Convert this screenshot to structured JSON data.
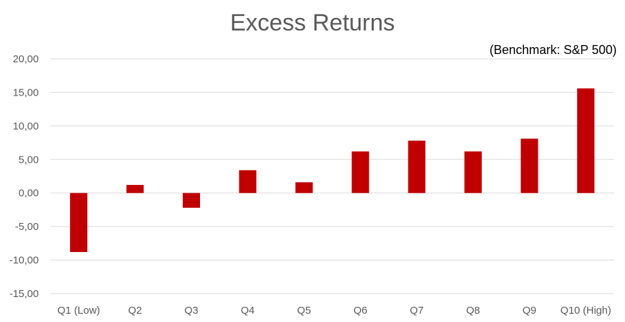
{
  "chart_data": {
    "type": "bar",
    "title": "Excess Returns",
    "subtitle": "(Benchmark: S&P 500)",
    "categories": [
      "Q1 (Low)",
      "Q2",
      "Q3",
      "Q4",
      "Q5",
      "Q6",
      "Q7",
      "Q8",
      "Q9",
      "Q10 (High)"
    ],
    "values": [
      -8.8,
      1.2,
      -2.2,
      3.4,
      1.6,
      6.2,
      7.8,
      6.2,
      8.1,
      15.6
    ],
    "ylim": [
      -15,
      20
    ],
    "yticks": [
      20,
      15,
      10,
      5,
      0,
      -5,
      -10,
      -15
    ],
    "ytick_labels": [
      "20,00",
      "15,00",
      "10,00",
      "5,00",
      "0,00",
      "-5,00",
      "-10,00",
      "-15,00"
    ],
    "grid": true,
    "bar_color": "#C00000",
    "grid_color": "#d9d9d9"
  }
}
